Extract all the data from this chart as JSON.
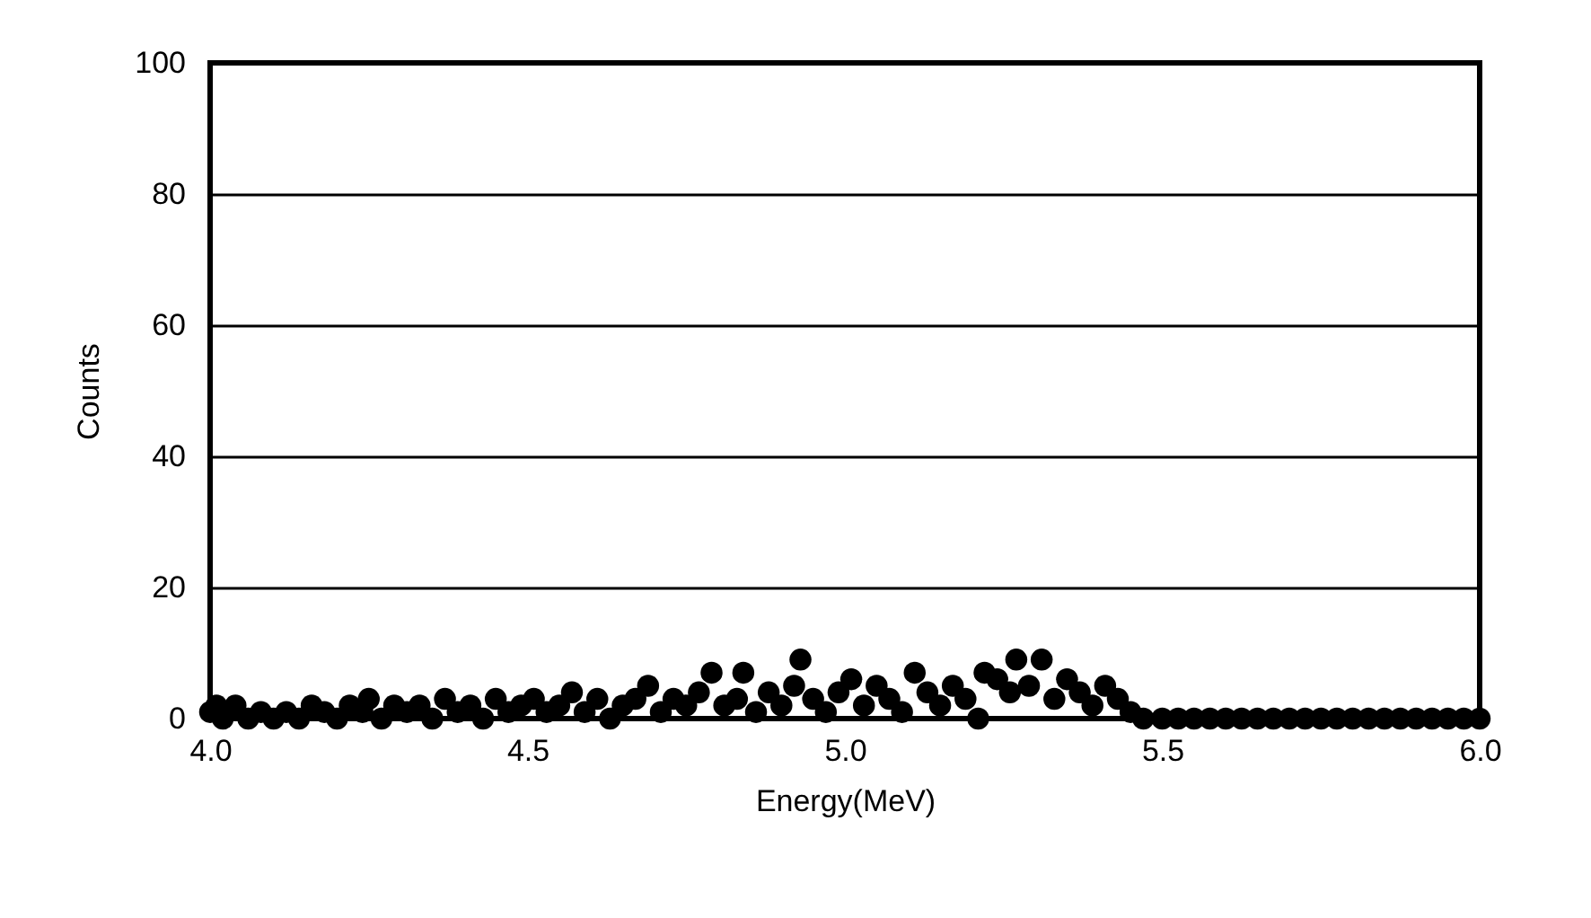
{
  "chart_data": {
    "type": "scatter",
    "xlabel": "Energy(MeV)",
    "ylabel": "Counts",
    "xlim": [
      4,
      6
    ],
    "xticks": [
      {
        "value": 4,
        "label": "4.0"
      },
      {
        "value": 4.5,
        "label": "4.5"
      },
      {
        "value": 5,
        "label": "5.0"
      },
      {
        "value": 5.5,
        "label": "5.5"
      },
      {
        "value": 6,
        "label": "6.0"
      }
    ],
    "ylim": [
      0,
      100
    ],
    "yticks": [
      0,
      20,
      40,
      60,
      80,
      100
    ],
    "grid": "y",
    "marker": "circle",
    "series": [
      {
        "color": "#000000",
        "x": [
          4.0,
          4.01,
          4.02,
          4.04,
          4.06,
          4.08,
          4.1,
          4.12,
          4.14,
          4.16,
          4.18,
          4.2,
          4.22,
          4.24,
          4.25,
          4.27,
          4.29,
          4.31,
          4.33,
          4.35,
          4.37,
          4.39,
          4.41,
          4.43,
          4.45,
          4.47,
          4.49,
          4.51,
          4.53,
          4.55,
          4.57,
          4.59,
          4.61,
          4.63,
          4.65,
          4.67,
          4.69,
          4.71,
          4.73,
          4.75,
          4.77,
          4.79,
          4.81,
          4.83,
          4.84,
          4.86,
          4.88,
          4.9,
          4.92,
          4.93,
          4.95,
          4.97,
          4.99,
          5.01,
          5.03,
          5.05,
          5.07,
          5.09,
          5.11,
          5.13,
          5.15,
          5.17,
          5.19,
          5.21,
          5.22,
          5.24,
          5.26,
          5.27,
          5.29,
          5.31,
          5.33,
          5.35,
          5.37,
          5.39,
          5.41,
          5.43,
          5.45,
          5.47,
          5.5,
          5.525,
          5.55,
          5.575,
          5.6,
          5.625,
          5.65,
          5.675,
          5.7,
          5.725,
          5.75,
          5.775,
          5.8,
          5.825,
          5.85,
          5.875,
          5.9,
          5.925,
          5.95,
          5.975,
          6.0
        ],
        "values": [
          1,
          2,
          0,
          2,
          0,
          1,
          0,
          1,
          0,
          2,
          1,
          0,
          2,
          1,
          3,
          0,
          2,
          1,
          2,
          0,
          3,
          1,
          2,
          0,
          3,
          1,
          2,
          3,
          1,
          2,
          4,
          1,
          3,
          0,
          2,
          3,
          5,
          1,
          3,
          2,
          4,
          7,
          2,
          3,
          7,
          1,
          4,
          2,
          5,
          9,
          3,
          1,
          4,
          6,
          2,
          5,
          3,
          1,
          7,
          4,
          2,
          5,
          3,
          0,
          7,
          6,
          4,
          9,
          5,
          9,
          3,
          6,
          4,
          2,
          5,
          3,
          1,
          0,
          0,
          0,
          0,
          0,
          0,
          0,
          0,
          0,
          0,
          0,
          0,
          0,
          0,
          0,
          0,
          0,
          0,
          0,
          0,
          0,
          0
        ]
      }
    ]
  }
}
